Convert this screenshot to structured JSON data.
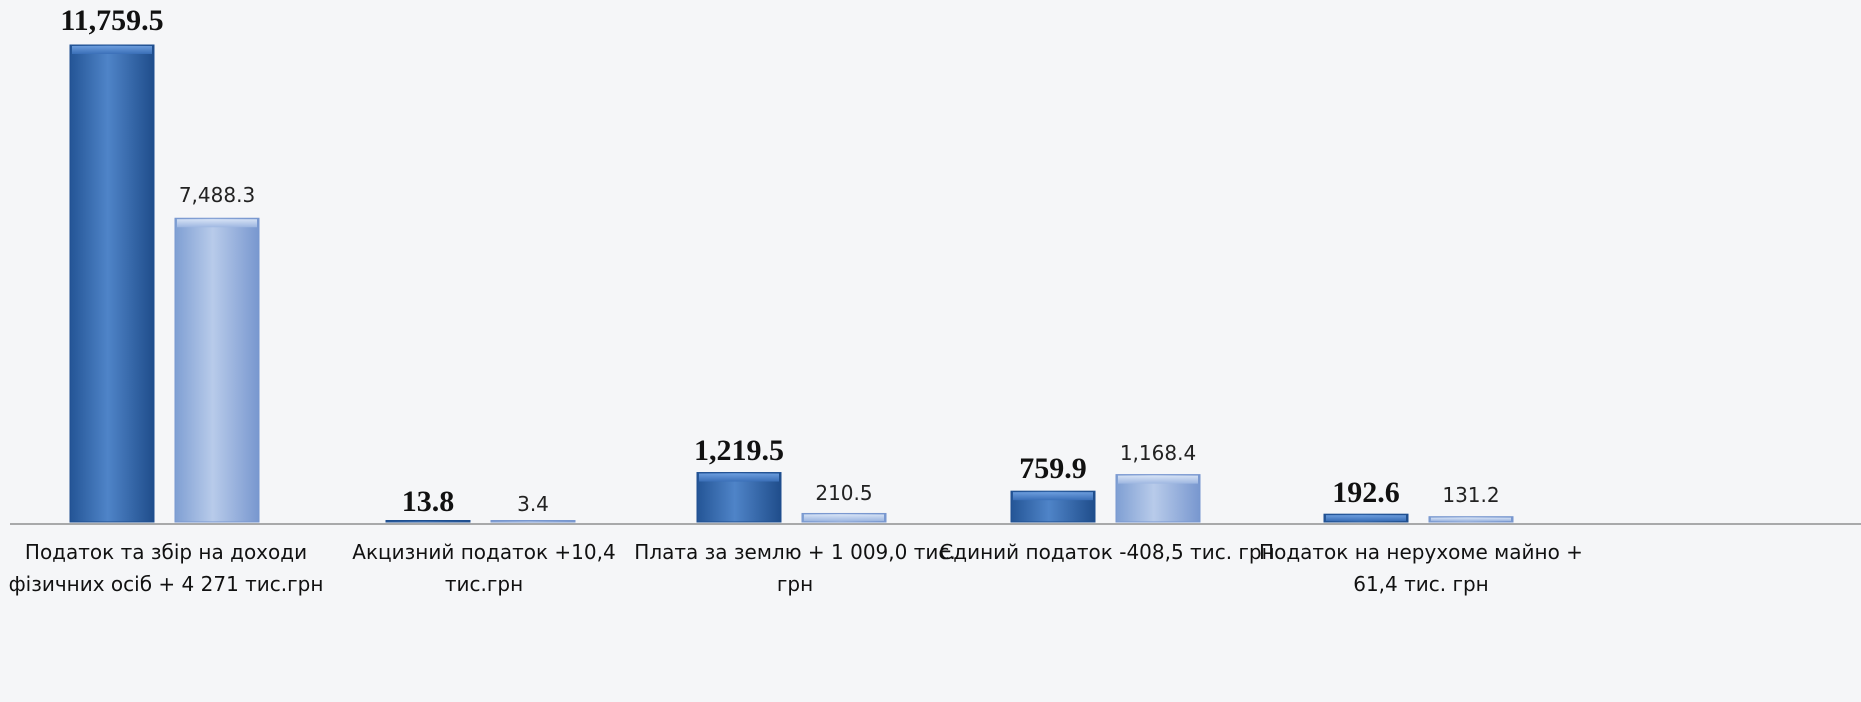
{
  "chart_data": {
    "type": "bar",
    "categories": [
      [
        "Податок та збір на доходи",
        "фізичних осіб  +  4 271 тис.грн"
      ],
      [
        "Акцизний податок   +10,4",
        "тис.грн"
      ],
      [
        "Плата за землю  + 1 009,0 тис.",
        "грн"
      ],
      [
        "Єдиний податок  -408,5 тис. грн"
      ],
      [
        "Податок на нерухоме майно  +",
        "61,4 тис. грн"
      ]
    ],
    "series": [
      {
        "values": [
          11759.5,
          13.8,
          1219.5,
          759.9,
          192.6
        ],
        "labels": [
          "11,759.5",
          "13.8",
          "1,219.5",
          "759.9",
          "192.6"
        ],
        "color": "#2f63a9"
      },
      {
        "values": [
          7488.3,
          3.4,
          210.5,
          1168.4,
          131.2
        ],
        "labels": [
          "7,488.3",
          "3.4",
          "210.5",
          "1,168.4",
          "131.2"
        ],
        "color": "#8faad8"
      }
    ],
    "ylim": [
      0,
      11759.5
    ],
    "grid": false,
    "legend": "none",
    "colors": {
      "primary_bar": "#2f63a9",
      "primary_bar_light": "#4f84c8",
      "secondary_bar": "#8faad8",
      "secondary_bar_light": "#b8cbea",
      "axis": "#8f8f8f",
      "background": "#f5f6f8"
    }
  }
}
